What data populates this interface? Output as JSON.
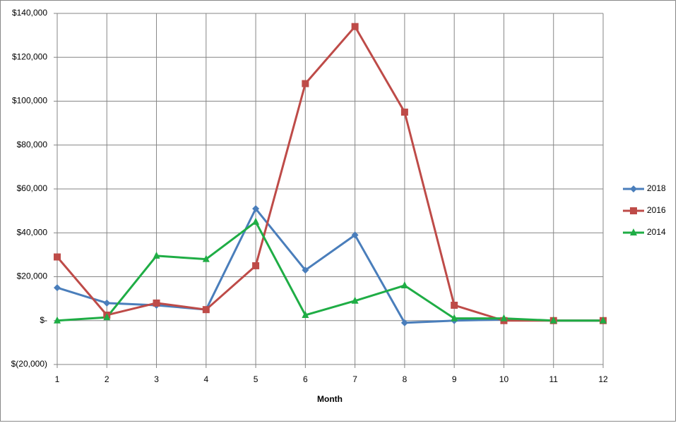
{
  "chart_data": {
    "type": "line",
    "x_label": "Month",
    "x": [
      1,
      2,
      3,
      4,
      5,
      6,
      7,
      8,
      9,
      10,
      11,
      12
    ],
    "xlim": [
      1,
      12
    ],
    "xticks": [
      1,
      2,
      3,
      4,
      5,
      6,
      7,
      8,
      9,
      10,
      11,
      12
    ],
    "ylim": [
      -20000,
      140000
    ],
    "yticks": [
      {
        "value": -20000,
        "label": "$(20,000)"
      },
      {
        "value": 0,
        "label": "$-"
      },
      {
        "value": 20000,
        "label": "$20,000"
      },
      {
        "value": 40000,
        "label": "$40,000"
      },
      {
        "value": 60000,
        "label": "$60,000"
      },
      {
        "value": 80000,
        "label": "$80,000"
      },
      {
        "value": 100000,
        "label": "$100,000"
      },
      {
        "value": 120000,
        "label": "$120,000"
      },
      {
        "value": 140000,
        "label": "$140,000"
      }
    ],
    "grid": true,
    "legend": "right",
    "series": [
      {
        "name": "2018",
        "color": "#4a7ebb",
        "marker": "diamond",
        "values": [
          15000,
          8000,
          7000,
          5000,
          51000,
          23000,
          39000,
          -1000,
          0,
          500,
          0,
          0
        ]
      },
      {
        "name": "2016",
        "color": "#be4b48",
        "marker": "square",
        "values": [
          29000,
          2500,
          8000,
          5000,
          25000,
          108000,
          134000,
          95000,
          7000,
          0,
          0,
          0
        ]
      },
      {
        "name": "2014",
        "color": "#1fad45",
        "marker": "triangle",
        "values": [
          0,
          1500,
          29500,
          28000,
          45000,
          2500,
          9000,
          16000,
          1000,
          1000,
          0,
          0
        ]
      }
    ]
  }
}
